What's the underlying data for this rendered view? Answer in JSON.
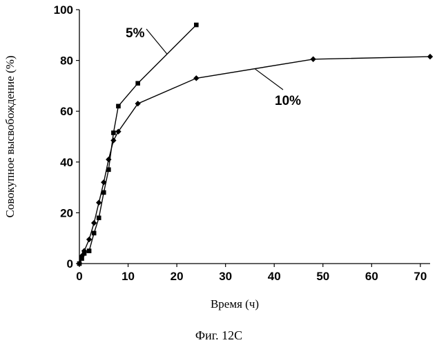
{
  "chart_data": {
    "type": "line",
    "xlabel": "Время (ч)",
    "ylabel": "Совокупное высвобождение (%)",
    "caption": "Фиг. 12С",
    "xlim": [
      0,
      72
    ],
    "ylim": [
      0,
      100
    ],
    "xticks": [
      0,
      10,
      20,
      30,
      40,
      50,
      60,
      70
    ],
    "yticks": [
      0,
      20,
      40,
      60,
      80,
      100
    ],
    "grid": false,
    "series": [
      {
        "name": "5%",
        "marker": "square",
        "x": [
          0,
          0.5,
          1,
          2,
          3,
          4,
          5,
          6,
          7,
          8,
          12,
          24
        ],
        "y": [
          0,
          2,
          4,
          5,
          12,
          18,
          28,
          37,
          51.5,
          62,
          71,
          94
        ]
      },
      {
        "name": "10%",
        "marker": "diamond",
        "x": [
          0,
          0.5,
          1,
          2,
          3,
          4,
          5,
          6,
          7,
          8,
          12,
          24,
          48,
          72
        ],
        "y": [
          0,
          3,
          5,
          9.5,
          16,
          24,
          32,
          41,
          48.5,
          52,
          63,
          73,
          80.5,
          81.5
        ]
      }
    ]
  }
}
